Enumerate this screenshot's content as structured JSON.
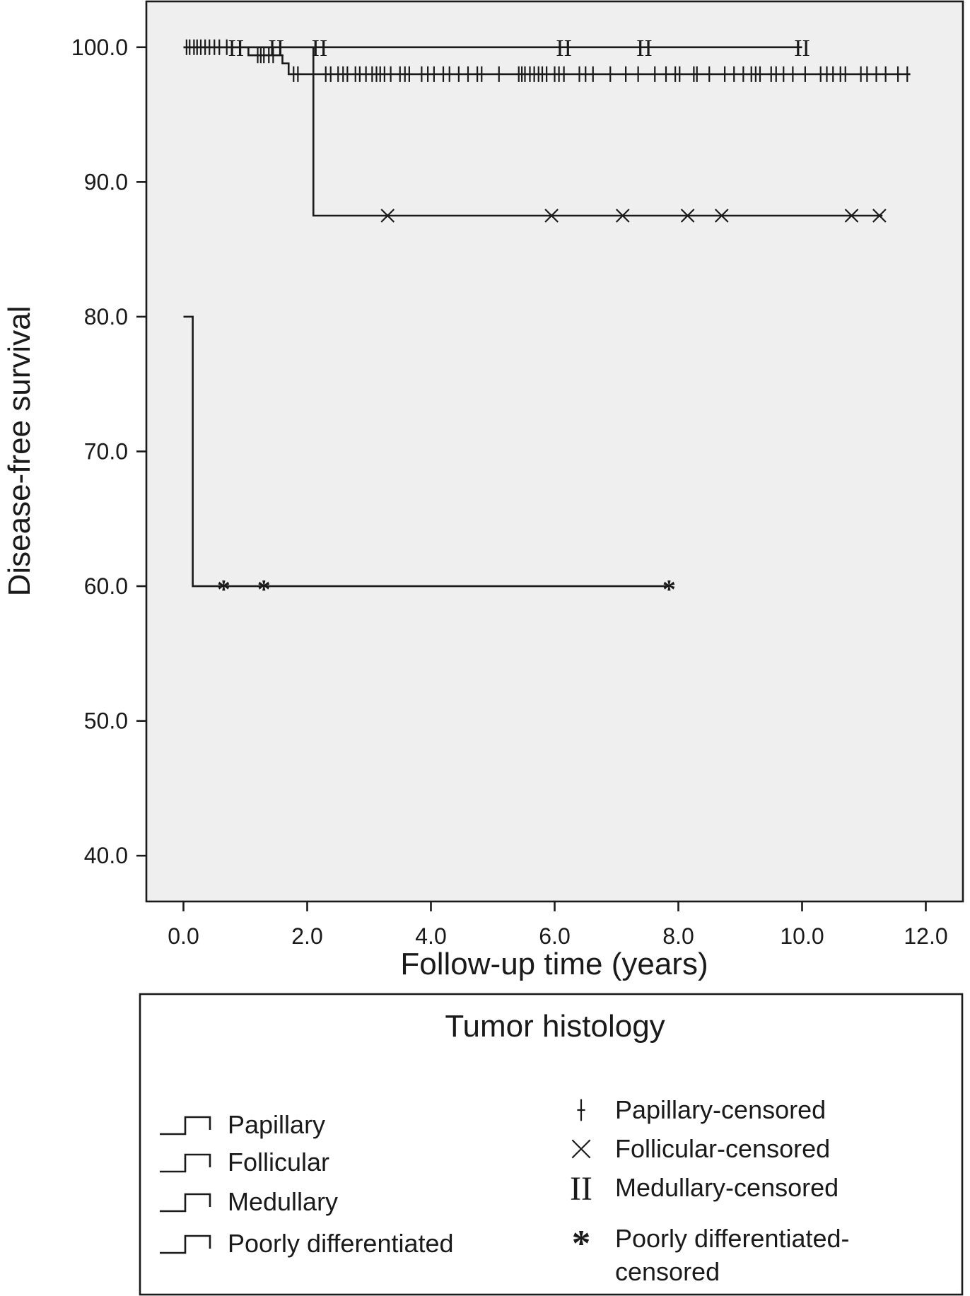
{
  "chart_data": {
    "type": "line",
    "subtype": "kaplan-meier",
    "xlabel": "Follow-up time (years)",
    "ylabel": "Disease-free survival",
    "xlim": [
      -0.6,
      12.6
    ],
    "ylim": [
      36.6,
      103.4
    ],
    "xticks": [
      0,
      2,
      4,
      6,
      8,
      10,
      12
    ],
    "xtick_labels": [
      "0.0",
      "2.0",
      "4.0",
      "6.0",
      "8.0",
      "10.0",
      "12.0"
    ],
    "yticks": [
      40,
      50,
      60,
      70,
      80,
      90,
      100
    ],
    "ytick_labels": [
      "40.0",
      "50.0",
      "60.0",
      "70.0",
      "80.0",
      "90.0",
      "100.0"
    ],
    "plot_background": "#efefef",
    "legend_position": "bottom",
    "legend_title": "Tumor histology",
    "legend_entries": {
      "curves": [
        "Papillary",
        "Follicular",
        "Medullary",
        "Poorly differentiated"
      ],
      "markers": [
        {
          "symbol": "+",
          "label": "Papillary-censored"
        },
        {
          "symbol": "×",
          "label": "Follicular-censored"
        },
        {
          "symbol": "II",
          "label": "Medullary-censored"
        },
        {
          "symbol": "*",
          "label": "Poorly differentiated-censored"
        }
      ]
    },
    "series": [
      {
        "name": "Papillary",
        "marker": "+",
        "steps": [
          [
            0.0,
            100.0
          ],
          [
            1.05,
            99.4
          ],
          [
            1.6,
            98.8
          ],
          [
            1.7,
            98.0
          ],
          [
            11.75,
            98.0
          ]
        ],
        "censored": [
          [
            0.05,
            100.0
          ],
          [
            0.1,
            100.0
          ],
          [
            0.17,
            100.0
          ],
          [
            0.22,
            100.0
          ],
          [
            0.28,
            100.0
          ],
          [
            0.35,
            100.0
          ],
          [
            0.42,
            100.0
          ],
          [
            0.5,
            100.0
          ],
          [
            0.58,
            100.0
          ],
          [
            0.7,
            100.0
          ],
          [
            1.2,
            99.4
          ],
          [
            1.25,
            99.4
          ],
          [
            1.3,
            99.4
          ],
          [
            1.38,
            99.4
          ],
          [
            1.45,
            99.4
          ],
          [
            1.78,
            98.0
          ],
          [
            1.85,
            98.0
          ],
          [
            2.3,
            98.0
          ],
          [
            2.38,
            98.0
          ],
          [
            2.5,
            98.0
          ],
          [
            2.58,
            98.0
          ],
          [
            2.65,
            98.0
          ],
          [
            2.78,
            98.0
          ],
          [
            2.85,
            98.0
          ],
          [
            2.95,
            98.0
          ],
          [
            3.05,
            98.0
          ],
          [
            3.12,
            98.0
          ],
          [
            3.18,
            98.0
          ],
          [
            3.25,
            98.0
          ],
          [
            3.35,
            98.0
          ],
          [
            3.5,
            98.0
          ],
          [
            3.58,
            98.0
          ],
          [
            3.65,
            98.0
          ],
          [
            3.85,
            98.0
          ],
          [
            3.95,
            98.0
          ],
          [
            4.05,
            98.0
          ],
          [
            4.2,
            98.0
          ],
          [
            4.3,
            98.0
          ],
          [
            4.45,
            98.0
          ],
          [
            4.6,
            98.0
          ],
          [
            4.75,
            98.0
          ],
          [
            4.82,
            98.0
          ],
          [
            5.1,
            98.0
          ],
          [
            5.42,
            98.0
          ],
          [
            5.47,
            98.0
          ],
          [
            5.52,
            98.0
          ],
          [
            5.6,
            98.0
          ],
          [
            5.67,
            98.0
          ],
          [
            5.74,
            98.0
          ],
          [
            5.8,
            98.0
          ],
          [
            5.87,
            98.0
          ],
          [
            6.0,
            98.0
          ],
          [
            6.07,
            98.0
          ],
          [
            6.15,
            98.0
          ],
          [
            6.4,
            98.0
          ],
          [
            6.5,
            98.0
          ],
          [
            6.62,
            98.0
          ],
          [
            6.9,
            98.0
          ],
          [
            7.15,
            98.0
          ],
          [
            7.35,
            98.0
          ],
          [
            7.62,
            98.0
          ],
          [
            7.8,
            98.0
          ],
          [
            7.95,
            98.0
          ],
          [
            8.02,
            98.0
          ],
          [
            8.25,
            98.0
          ],
          [
            8.3,
            98.0
          ],
          [
            8.5,
            98.0
          ],
          [
            8.75,
            98.0
          ],
          [
            8.9,
            98.0
          ],
          [
            9.05,
            98.0
          ],
          [
            9.18,
            98.0
          ],
          [
            9.25,
            98.0
          ],
          [
            9.32,
            98.0
          ],
          [
            9.5,
            98.0
          ],
          [
            9.58,
            98.0
          ],
          [
            9.7,
            98.0
          ],
          [
            9.85,
            98.0
          ],
          [
            10.05,
            98.0
          ],
          [
            10.3,
            98.0
          ],
          [
            10.4,
            98.0
          ],
          [
            10.5,
            98.0
          ],
          [
            10.62,
            98.0
          ],
          [
            10.7,
            98.0
          ],
          [
            10.95,
            98.0
          ],
          [
            11.05,
            98.0
          ],
          [
            11.2,
            98.0
          ],
          [
            11.35,
            98.0
          ],
          [
            11.55,
            98.0
          ],
          [
            11.7,
            98.0
          ]
        ]
      },
      {
        "name": "Follicular",
        "marker": "×",
        "steps": [
          [
            0.0,
            100.0
          ],
          [
            2.1,
            87.5
          ],
          [
            11.3,
            87.5
          ]
        ],
        "censored": [
          [
            3.3,
            87.5
          ],
          [
            5.95,
            87.5
          ],
          [
            7.1,
            87.5
          ],
          [
            8.15,
            87.5
          ],
          [
            8.7,
            87.5
          ],
          [
            10.8,
            87.5
          ],
          [
            11.25,
            87.5
          ]
        ]
      },
      {
        "name": "Medullary",
        "marker": "II",
        "steps": [
          [
            0.0,
            100.0
          ],
          [
            10.0,
            100.0
          ]
        ],
        "censored": [
          [
            0.85,
            100.0
          ],
          [
            1.5,
            100.0
          ],
          [
            2.2,
            100.0
          ],
          [
            6.15,
            100.0
          ],
          [
            7.45,
            100.0
          ],
          [
            10.0,
            100.0
          ]
        ]
      },
      {
        "name": "Poorly differentiated",
        "marker": "*",
        "steps": [
          [
            0.0,
            80.0
          ],
          [
            0.15,
            60.0
          ],
          [
            7.85,
            60.0
          ]
        ],
        "censored": [
          [
            0.65,
            60.0
          ],
          [
            1.3,
            60.0
          ],
          [
            7.85,
            60.0
          ]
        ]
      }
    ]
  }
}
